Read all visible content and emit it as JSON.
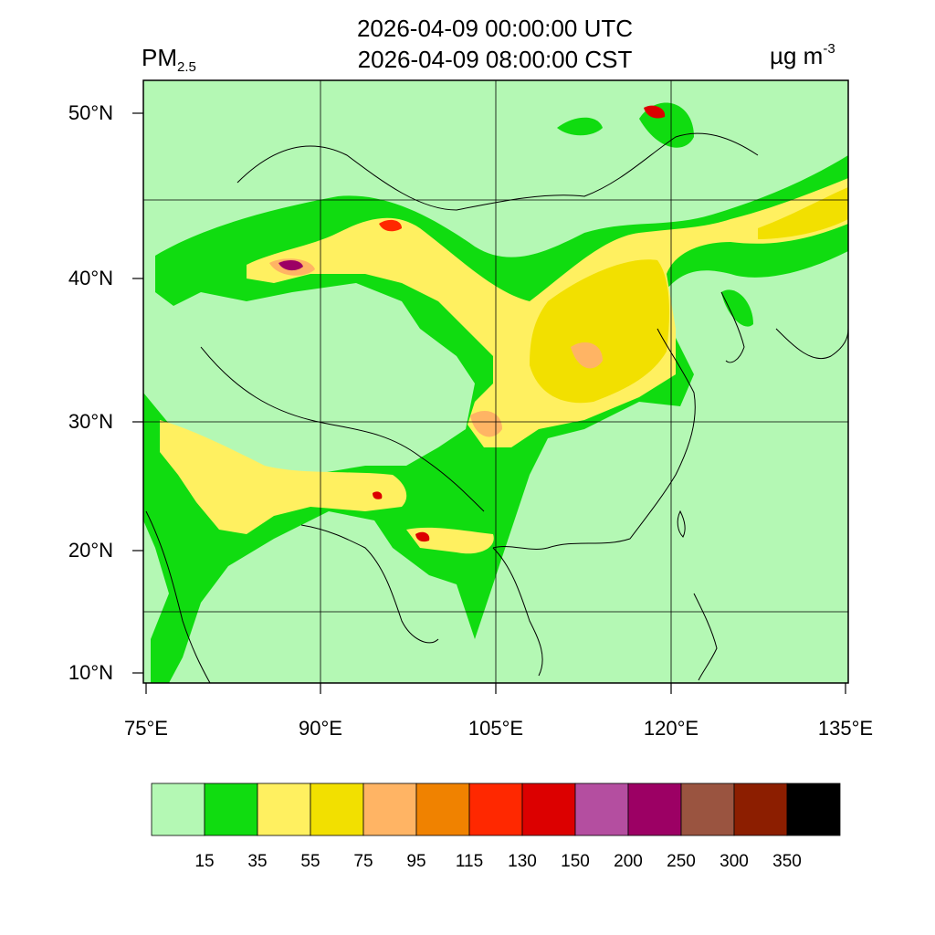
{
  "header": {
    "title_utc": "2026-04-09 00:00:00 UTC",
    "title_cst": "2026-04-09 08:00:00 CST",
    "variable_main": "PM",
    "variable_sub": "2.5",
    "unit_main": "µg m",
    "unit_sup": "-3"
  },
  "axes": {
    "lat_labels": [
      "50°N",
      "40°N",
      "30°N",
      "20°N",
      "10°N"
    ],
    "lon_labels": [
      "75°E",
      "90°E",
      "105°E",
      "120°E",
      "135°E"
    ]
  },
  "colorbar": {
    "labels": [
      "15",
      "35",
      "55",
      "75",
      "95",
      "115",
      "130",
      "150",
      "200",
      "250",
      "300",
      "350"
    ],
    "colors": [
      "#b4f8b4",
      "#10dc10",
      "#fff060",
      "#f2e000",
      "#ffb464",
      "#f08200",
      "#ff2800",
      "#dc0000",
      "#b44ea0",
      "#9c0064",
      "#9a5440",
      "#8c1e00",
      "#000000"
    ]
  },
  "colors": {
    "background_class": "#b4f8b4",
    "border": "#000000"
  }
}
